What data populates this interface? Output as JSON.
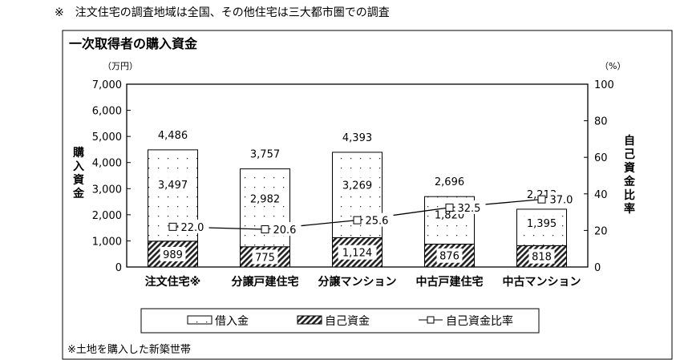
{
  "note_top": "※　注文住宅の調査地域は全国、その他住宅は三大都市圏での調査",
  "note_bottom": "※土地を購入した新築世帯",
  "chart_data": {
    "type": "bar",
    "stacked": true,
    "title": "一次取得者の購入資金",
    "ylabel": "購入資金",
    "yunit": "（万円）",
    "y2label": "自己資金比率",
    "y2unit": "（%）",
    "ylim": [
      0,
      7000
    ],
    "y2lim": [
      0,
      100
    ],
    "yticks": [
      "0",
      "1,000",
      "2,000",
      "3,000",
      "4,000",
      "5,000",
      "6,000",
      "7,000"
    ],
    "y2ticks": [
      "0",
      "20",
      "40",
      "60",
      "80",
      "100"
    ],
    "categories": [
      "注文住宅※",
      "分譲戸建住宅",
      "分譲マンション",
      "中古戸建住宅",
      "中古マンション"
    ],
    "totals": [
      "4,486",
      "3,757",
      "4,393",
      "2,696",
      "2,213"
    ],
    "series": [
      {
        "name": "自己資金",
        "values": [
          989,
          775,
          1124,
          876,
          818
        ],
        "labels": [
          "989",
          "775",
          "1,124",
          "876",
          "818"
        ],
        "pattern": "hatch"
      },
      {
        "name": "借入金",
        "values": [
          3497,
          2982,
          3269,
          1820,
          1395
        ],
        "labels": [
          "3,497",
          "2,982",
          "3,269",
          "1,820",
          "1,395"
        ],
        "pattern": "dots"
      },
      {
        "name": "自己資金比率",
        "type": "line",
        "axis": "right",
        "values": [
          22.0,
          20.6,
          25.6,
          32.5,
          37.0
        ],
        "labels": [
          "22.0",
          "20.6",
          "25.6",
          "32.5",
          "37.0"
        ],
        "marker": "square"
      }
    ],
    "legend": [
      "借入金",
      "自己資金",
      "自己資金比率"
    ],
    "legend_position": "bottom",
    "grid": false
  }
}
